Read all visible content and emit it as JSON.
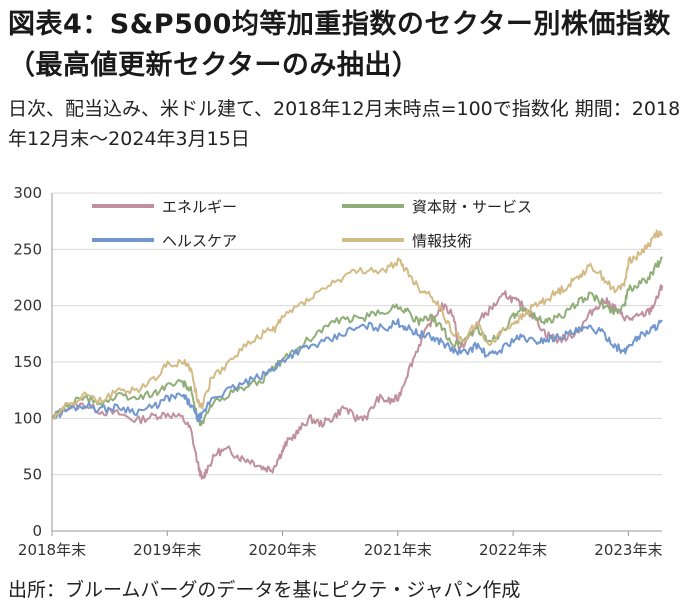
{
  "header": {
    "title": "図表4：S&P500均等加重指数のセクター別株価指数（最高値更新セクターのみ抽出）",
    "subtitle": "日次、配当込み、米ドル建て、2018年12月末時点=100で指数化 期間：2018年12月末～2024年3月15日"
  },
  "footer": {
    "source": "出所：ブルームバーグのデータを基にピクテ・ジャパン作成"
  },
  "chart_data": {
    "type": "line",
    "title": "",
    "xlabel": "",
    "ylabel": "",
    "ylim": [
      0,
      300
    ],
    "xlim": [
      2018.9167,
      2024.2083
    ],
    "y_ticks": [
      0,
      50,
      100,
      150,
      200,
      250,
      300
    ],
    "x_ticks": [
      {
        "value": 2018.9167,
        "label": "2018年末"
      },
      {
        "value": 2019.9167,
        "label": "2019年末"
      },
      {
        "value": 2020.9167,
        "label": "2020年末"
      },
      {
        "value": 2021.9167,
        "label": "2021年末"
      },
      {
        "value": 2022.9167,
        "label": "2022年末"
      },
      {
        "value": 2023.9167,
        "label": "2023年末"
      }
    ],
    "grid": "horizontal",
    "legend_position": "top-left",
    "series": [
      {
        "name": "エネルギー",
        "color": "#C0909E",
        "points": [
          [
            2018.92,
            100
          ],
          [
            2019.05,
            110
          ],
          [
            2019.2,
            112
          ],
          [
            2019.35,
            106
          ],
          [
            2019.5,
            104
          ],
          [
            2019.65,
            98
          ],
          [
            2019.8,
            102
          ],
          [
            2019.92,
            104
          ],
          [
            2020.05,
            100
          ],
          [
            2020.12,
            90
          ],
          [
            2020.18,
            60
          ],
          [
            2020.22,
            45
          ],
          [
            2020.26,
            55
          ],
          [
            2020.35,
            70
          ],
          [
            2020.45,
            72
          ],
          [
            2020.55,
            65
          ],
          [
            2020.65,
            62
          ],
          [
            2020.75,
            56
          ],
          [
            2020.83,
            55
          ],
          [
            2020.9,
            68
          ],
          [
            2020.95,
            78
          ],
          [
            2021.05,
            88
          ],
          [
            2021.15,
            100
          ],
          [
            2021.25,
            95
          ],
          [
            2021.35,
            100
          ],
          [
            2021.45,
            110
          ],
          [
            2021.55,
            100
          ],
          [
            2021.65,
            102
          ],
          [
            2021.75,
            118
          ],
          [
            2021.85,
            115
          ],
          [
            2021.92,
            118
          ],
          [
            2022.0,
            140
          ],
          [
            2022.1,
            165
          ],
          [
            2022.2,
            185
          ],
          [
            2022.3,
            200
          ],
          [
            2022.4,
            192
          ],
          [
            2022.45,
            160
          ],
          [
            2022.55,
            175
          ],
          [
            2022.65,
            190
          ],
          [
            2022.75,
            200
          ],
          [
            2022.85,
            210
          ],
          [
            2022.92,
            205
          ],
          [
            2023.0,
            200
          ],
          [
            2023.1,
            190
          ],
          [
            2023.2,
            175
          ],
          [
            2023.3,
            170
          ],
          [
            2023.4,
            172
          ],
          [
            2023.5,
            180
          ],
          [
            2023.6,
            195
          ],
          [
            2023.7,
            205
          ],
          [
            2023.78,
            200
          ],
          [
            2023.85,
            192
          ],
          [
            2023.92,
            188
          ],
          [
            2024.0,
            190
          ],
          [
            2024.1,
            195
          ],
          [
            2024.16,
            205
          ],
          [
            2024.21,
            218
          ]
        ]
      },
      {
        "name": "資本財・サービス",
        "color": "#8FAE78",
        "points": [
          [
            2018.92,
            100
          ],
          [
            2019.05,
            112
          ],
          [
            2019.2,
            118
          ],
          [
            2019.35,
            114
          ],
          [
            2019.5,
            120
          ],
          [
            2019.65,
            118
          ],
          [
            2019.8,
            122
          ],
          [
            2019.92,
            130
          ],
          [
            2020.05,
            132
          ],
          [
            2020.12,
            125
          ],
          [
            2020.18,
            100
          ],
          [
            2020.22,
            95
          ],
          [
            2020.3,
            112
          ],
          [
            2020.45,
            122
          ],
          [
            2020.6,
            128
          ],
          [
            2020.75,
            135
          ],
          [
            2020.85,
            145
          ],
          [
            2020.92,
            152
          ],
          [
            2021.05,
            162
          ],
          [
            2021.2,
            175
          ],
          [
            2021.35,
            185
          ],
          [
            2021.5,
            188
          ],
          [
            2021.65,
            190
          ],
          [
            2021.8,
            195
          ],
          [
            2021.92,
            200
          ],
          [
            2022.0,
            195
          ],
          [
            2022.1,
            185
          ],
          [
            2022.2,
            190
          ],
          [
            2022.3,
            180
          ],
          [
            2022.4,
            165
          ],
          [
            2022.5,
            170
          ],
          [
            2022.6,
            180
          ],
          [
            2022.7,
            168
          ],
          [
            2022.8,
            175
          ],
          [
            2022.92,
            190
          ],
          [
            2023.0,
            195
          ],
          [
            2023.1,
            192
          ],
          [
            2023.2,
            185
          ],
          [
            2023.3,
            190
          ],
          [
            2023.4,
            195
          ],
          [
            2023.5,
            205
          ],
          [
            2023.6,
            210
          ],
          [
            2023.7,
            200
          ],
          [
            2023.8,
            195
          ],
          [
            2023.88,
            200
          ],
          [
            2023.92,
            215
          ],
          [
            2024.0,
            218
          ],
          [
            2024.1,
            225
          ],
          [
            2024.16,
            235
          ],
          [
            2024.21,
            242
          ]
        ]
      },
      {
        "name": "ヘルスケア",
        "color": "#7297CF",
        "points": [
          [
            2018.92,
            100
          ],
          [
            2019.05,
            108
          ],
          [
            2019.2,
            112
          ],
          [
            2019.35,
            108
          ],
          [
            2019.5,
            110
          ],
          [
            2019.65,
            106
          ],
          [
            2019.8,
            110
          ],
          [
            2019.92,
            118
          ],
          [
            2020.05,
            120
          ],
          [
            2020.12,
            112
          ],
          [
            2020.18,
            100
          ],
          [
            2020.22,
            102
          ],
          [
            2020.3,
            118
          ],
          [
            2020.45,
            125
          ],
          [
            2020.6,
            132
          ],
          [
            2020.75,
            138
          ],
          [
            2020.85,
            145
          ],
          [
            2020.92,
            152
          ],
          [
            2021.05,
            160
          ],
          [
            2021.2,
            165
          ],
          [
            2021.35,
            170
          ],
          [
            2021.5,
            178
          ],
          [
            2021.65,
            182
          ],
          [
            2021.8,
            180
          ],
          [
            2021.92,
            185
          ],
          [
            2022.0,
            180
          ],
          [
            2022.1,
            175
          ],
          [
            2022.2,
            172
          ],
          [
            2022.3,
            168
          ],
          [
            2022.4,
            160
          ],
          [
            2022.5,
            158
          ],
          [
            2022.6,
            165
          ],
          [
            2022.7,
            155
          ],
          [
            2022.8,
            160
          ],
          [
            2022.92,
            170
          ],
          [
            2023.0,
            172
          ],
          [
            2023.1,
            168
          ],
          [
            2023.2,
            170
          ],
          [
            2023.3,
            172
          ],
          [
            2023.4,
            175
          ],
          [
            2023.5,
            178
          ],
          [
            2023.6,
            180
          ],
          [
            2023.7,
            175
          ],
          [
            2023.8,
            165
          ],
          [
            2023.88,
            158
          ],
          [
            2023.92,
            165
          ],
          [
            2024.0,
            172
          ],
          [
            2024.1,
            178
          ],
          [
            2024.16,
            182
          ],
          [
            2024.21,
            186
          ]
        ]
      },
      {
        "name": "情報技術",
        "color": "#D4BB86",
        "points": [
          [
            2018.92,
            100
          ],
          [
            2019.05,
            112
          ],
          [
            2019.2,
            120
          ],
          [
            2019.35,
            115
          ],
          [
            2019.5,
            125
          ],
          [
            2019.65,
            125
          ],
          [
            2019.8,
            135
          ],
          [
            2019.92,
            148
          ],
          [
            2020.05,
            150
          ],
          [
            2020.12,
            145
          ],
          [
            2020.18,
            115
          ],
          [
            2020.22,
            112
          ],
          [
            2020.3,
            135
          ],
          [
            2020.45,
            150
          ],
          [
            2020.6,
            165
          ],
          [
            2020.75,
            175
          ],
          [
            2020.85,
            180
          ],
          [
            2020.92,
            190
          ],
          [
            2021.05,
            200
          ],
          [
            2021.2,
            210
          ],
          [
            2021.35,
            220
          ],
          [
            2021.5,
            228
          ],
          [
            2021.65,
            232
          ],
          [
            2021.8,
            230
          ],
          [
            2021.92,
            240
          ],
          [
            2022.0,
            230
          ],
          [
            2022.1,
            215
          ],
          [
            2022.2,
            210
          ],
          [
            2022.3,
            195
          ],
          [
            2022.4,
            175
          ],
          [
            2022.5,
            170
          ],
          [
            2022.6,
            185
          ],
          [
            2022.7,
            165
          ],
          [
            2022.8,
            175
          ],
          [
            2022.92,
            185
          ],
          [
            2023.0,
            190
          ],
          [
            2023.1,
            200
          ],
          [
            2023.2,
            205
          ],
          [
            2023.3,
            212
          ],
          [
            2023.4,
            218
          ],
          [
            2023.5,
            228
          ],
          [
            2023.6,
            235
          ],
          [
            2023.7,
            225
          ],
          [
            2023.8,
            212
          ],
          [
            2023.88,
            220
          ],
          [
            2023.92,
            240
          ],
          [
            2024.0,
            245
          ],
          [
            2024.1,
            255
          ],
          [
            2024.16,
            265
          ],
          [
            2024.21,
            262
          ]
        ]
      }
    ]
  }
}
